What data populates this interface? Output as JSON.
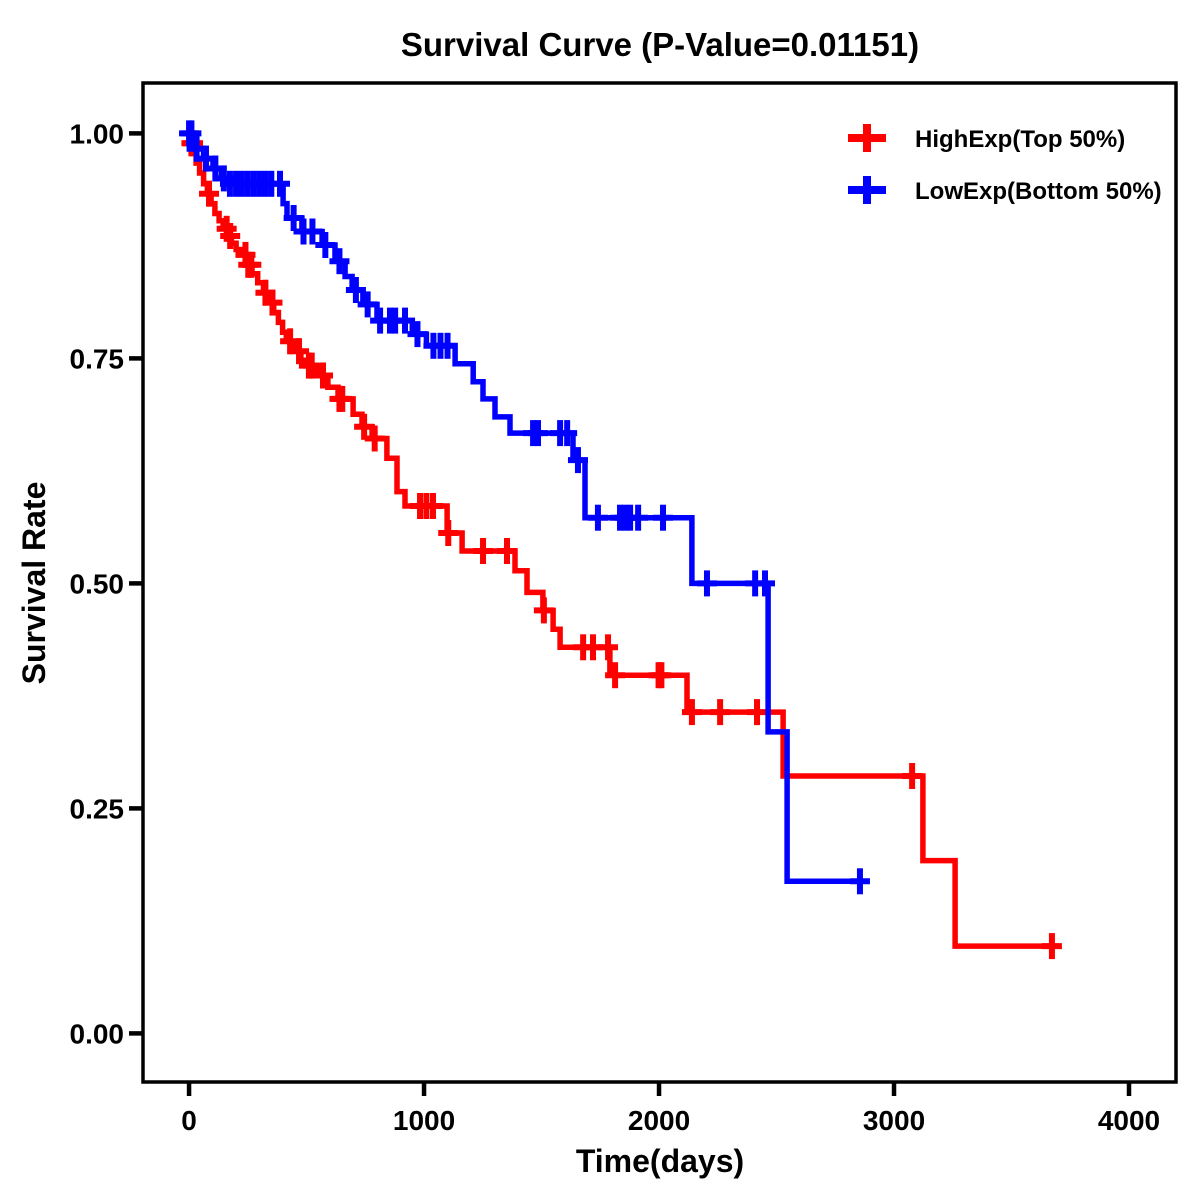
{
  "page": {
    "title": "Survival Curve (P-Value=0.01151)"
  },
  "chart_data": {
    "type": "line",
    "subtype": "kaplan-meier-step",
    "title": "Survival Curve (P-Value=0.01151)",
    "p_value": "0.01151",
    "xlabel": "Time(days)",
    "ylabel": "Survival Rate",
    "grid": false,
    "background": "#ffffff",
    "axis_color": "#000000",
    "legend_position": "top-right-inside",
    "xlim": [
      -196,
      4200
    ],
    "ylim": [
      -0.054,
      1.056
    ],
    "x_ticks": [
      0,
      1000,
      2000,
      3000,
      4000
    ],
    "x_tick_labels": [
      "0",
      "1000",
      "2000",
      "3000",
      "4000"
    ],
    "y_ticks": [
      0.0,
      0.25,
      0.5,
      0.75,
      1.0
    ],
    "y_tick_labels": [
      "0.00",
      "0.25",
      "0.50",
      "0.75",
      "1.00"
    ],
    "series": [
      {
        "name": "HighExp(Top 50%)",
        "color": "#ff0000",
        "steps": [
          [
            0,
            1.0
          ],
          [
            8,
            0.989
          ],
          [
            18,
            0.978
          ],
          [
            30,
            0.967
          ],
          [
            45,
            0.956
          ],
          [
            62,
            0.944
          ],
          [
            78,
            0.933
          ],
          [
            94,
            0.922
          ],
          [
            110,
            0.911
          ],
          [
            128,
            0.903
          ],
          [
            145,
            0.894
          ],
          [
            162,
            0.886
          ],
          [
            180,
            0.878
          ],
          [
            200,
            0.871
          ],
          [
            222,
            0.865
          ],
          [
            245,
            0.854
          ],
          [
            268,
            0.844
          ],
          [
            292,
            0.834
          ],
          [
            317,
            0.823
          ],
          [
            338,
            0.812
          ],
          [
            360,
            0.801
          ],
          [
            380,
            0.79
          ],
          [
            398,
            0.779
          ],
          [
            414,
            0.769
          ],
          [
            450,
            0.758
          ],
          [
            476,
            0.748
          ],
          [
            506,
            0.742
          ],
          [
            536,
            0.736
          ],
          [
            556,
            0.731
          ],
          [
            591,
            0.718
          ],
          [
            634,
            0.705
          ],
          [
            698,
            0.688
          ],
          [
            736,
            0.674
          ],
          [
            779,
            0.661
          ],
          [
            842,
            0.639
          ],
          [
            885,
            0.602
          ],
          [
            919,
            0.586
          ],
          [
            1098,
            0.556
          ],
          [
            1162,
            0.536
          ],
          [
            1387,
            0.514
          ],
          [
            1438,
            0.49
          ],
          [
            1506,
            0.47
          ],
          [
            1549,
            0.449
          ],
          [
            1579,
            0.429
          ],
          [
            1791,
            0.398
          ],
          [
            2119,
            0.357
          ],
          [
            2528,
            0.286
          ],
          [
            3123,
            0.192
          ],
          [
            3260,
            0.097
          ],
          [
            3694,
            0.097
          ]
        ],
        "censor_days": [
          10,
          17,
          85,
          160,
          175,
          240,
          252,
          265,
          325,
          355,
          430,
          468,
          510,
          522,
          570,
          640,
          652,
          745,
          790,
          983,
          1010,
          1038,
          1103,
          1251,
          1353,
          1510,
          1677,
          1719,
          1783,
          1813,
          1998,
          2010,
          2140,
          2260,
          2417,
          3077,
          3672
        ]
      },
      {
        "name": "LowExp(Bottom 50%)",
        "color": "#0000ff",
        "steps": [
          [
            0,
            1.0
          ],
          [
            12,
            0.989
          ],
          [
            28,
            0.983
          ],
          [
            62,
            0.972
          ],
          [
            102,
            0.961
          ],
          [
            138,
            0.95
          ],
          [
            168,
            0.944
          ],
          [
            400,
            0.922
          ],
          [
            417,
            0.906
          ],
          [
            480,
            0.891
          ],
          [
            566,
            0.876
          ],
          [
            621,
            0.858
          ],
          [
            664,
            0.841
          ],
          [
            694,
            0.826
          ],
          [
            740,
            0.81
          ],
          [
            800,
            0.792
          ],
          [
            950,
            0.777
          ],
          [
            1010,
            0.764
          ],
          [
            1132,
            0.744
          ],
          [
            1209,
            0.724
          ],
          [
            1251,
            0.705
          ],
          [
            1302,
            0.685
          ],
          [
            1366,
            0.667
          ],
          [
            1634,
            0.637
          ],
          [
            1685,
            0.573
          ],
          [
            2140,
            0.5
          ],
          [
            2464,
            0.335
          ],
          [
            2545,
            0.169
          ],
          [
            2877,
            0.169
          ]
        ],
        "censor_days": [
          0,
          10,
          32,
          72,
          112,
          148,
          174,
          200,
          225,
          250,
          275,
          300,
          325,
          350,
          387,
          445,
          487,
          525,
          580,
          640,
          710,
          760,
          813,
          855,
          877,
          919,
          972,
          1040,
          1070,
          1100,
          1464,
          1485,
          1579,
          1609,
          1655,
          1740,
          1834,
          1855,
          1877,
          1911,
          2017,
          2204,
          2409,
          2451,
          2855
        ]
      }
    ]
  }
}
